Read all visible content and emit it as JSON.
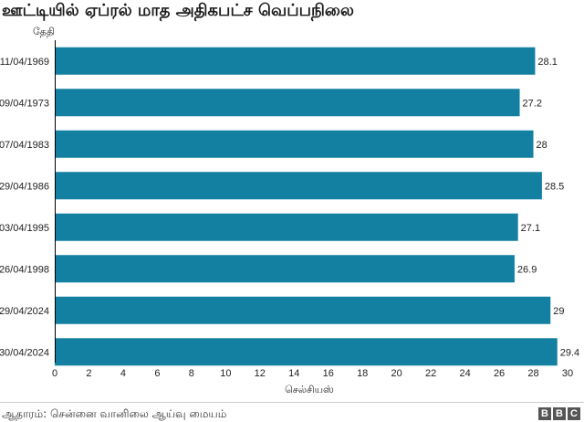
{
  "title": "ஊட்டியில் ஏப்ரல் மாத அதிகபட்ச வெப்பநிலை",
  "source": "ஆதாரம்: சென்னை வானிலை ஆய்வு மையம்",
  "logo": [
    "B",
    "B",
    "C"
  ],
  "colors": {
    "bar": "#1380a1",
    "axis": "#000000"
  },
  "chart_data": {
    "type": "bar",
    "orientation": "horizontal",
    "ylabel": "தேதி",
    "xlabel": "செல்சியஸ்",
    "categories": [
      "11/04/1969",
      "09/04/1973",
      "07/04/1983",
      "29/04/1986",
      "03/04/1995",
      "26/04/1998",
      "29/04/2024",
      "30/04/2024"
    ],
    "values": [
      28.1,
      27.2,
      28,
      28.5,
      27.1,
      26.9,
      29,
      29.4
    ],
    "data_labels": [
      "28.1",
      "27.2",
      "28",
      "28.5",
      "27.1",
      "26.9",
      "29",
      "29.4"
    ],
    "xlim": [
      0,
      30
    ],
    "xticks": [
      0,
      2,
      4,
      6,
      8,
      10,
      12,
      14,
      16,
      18,
      20,
      22,
      24,
      26,
      28,
      30
    ],
    "grid": false
  }
}
